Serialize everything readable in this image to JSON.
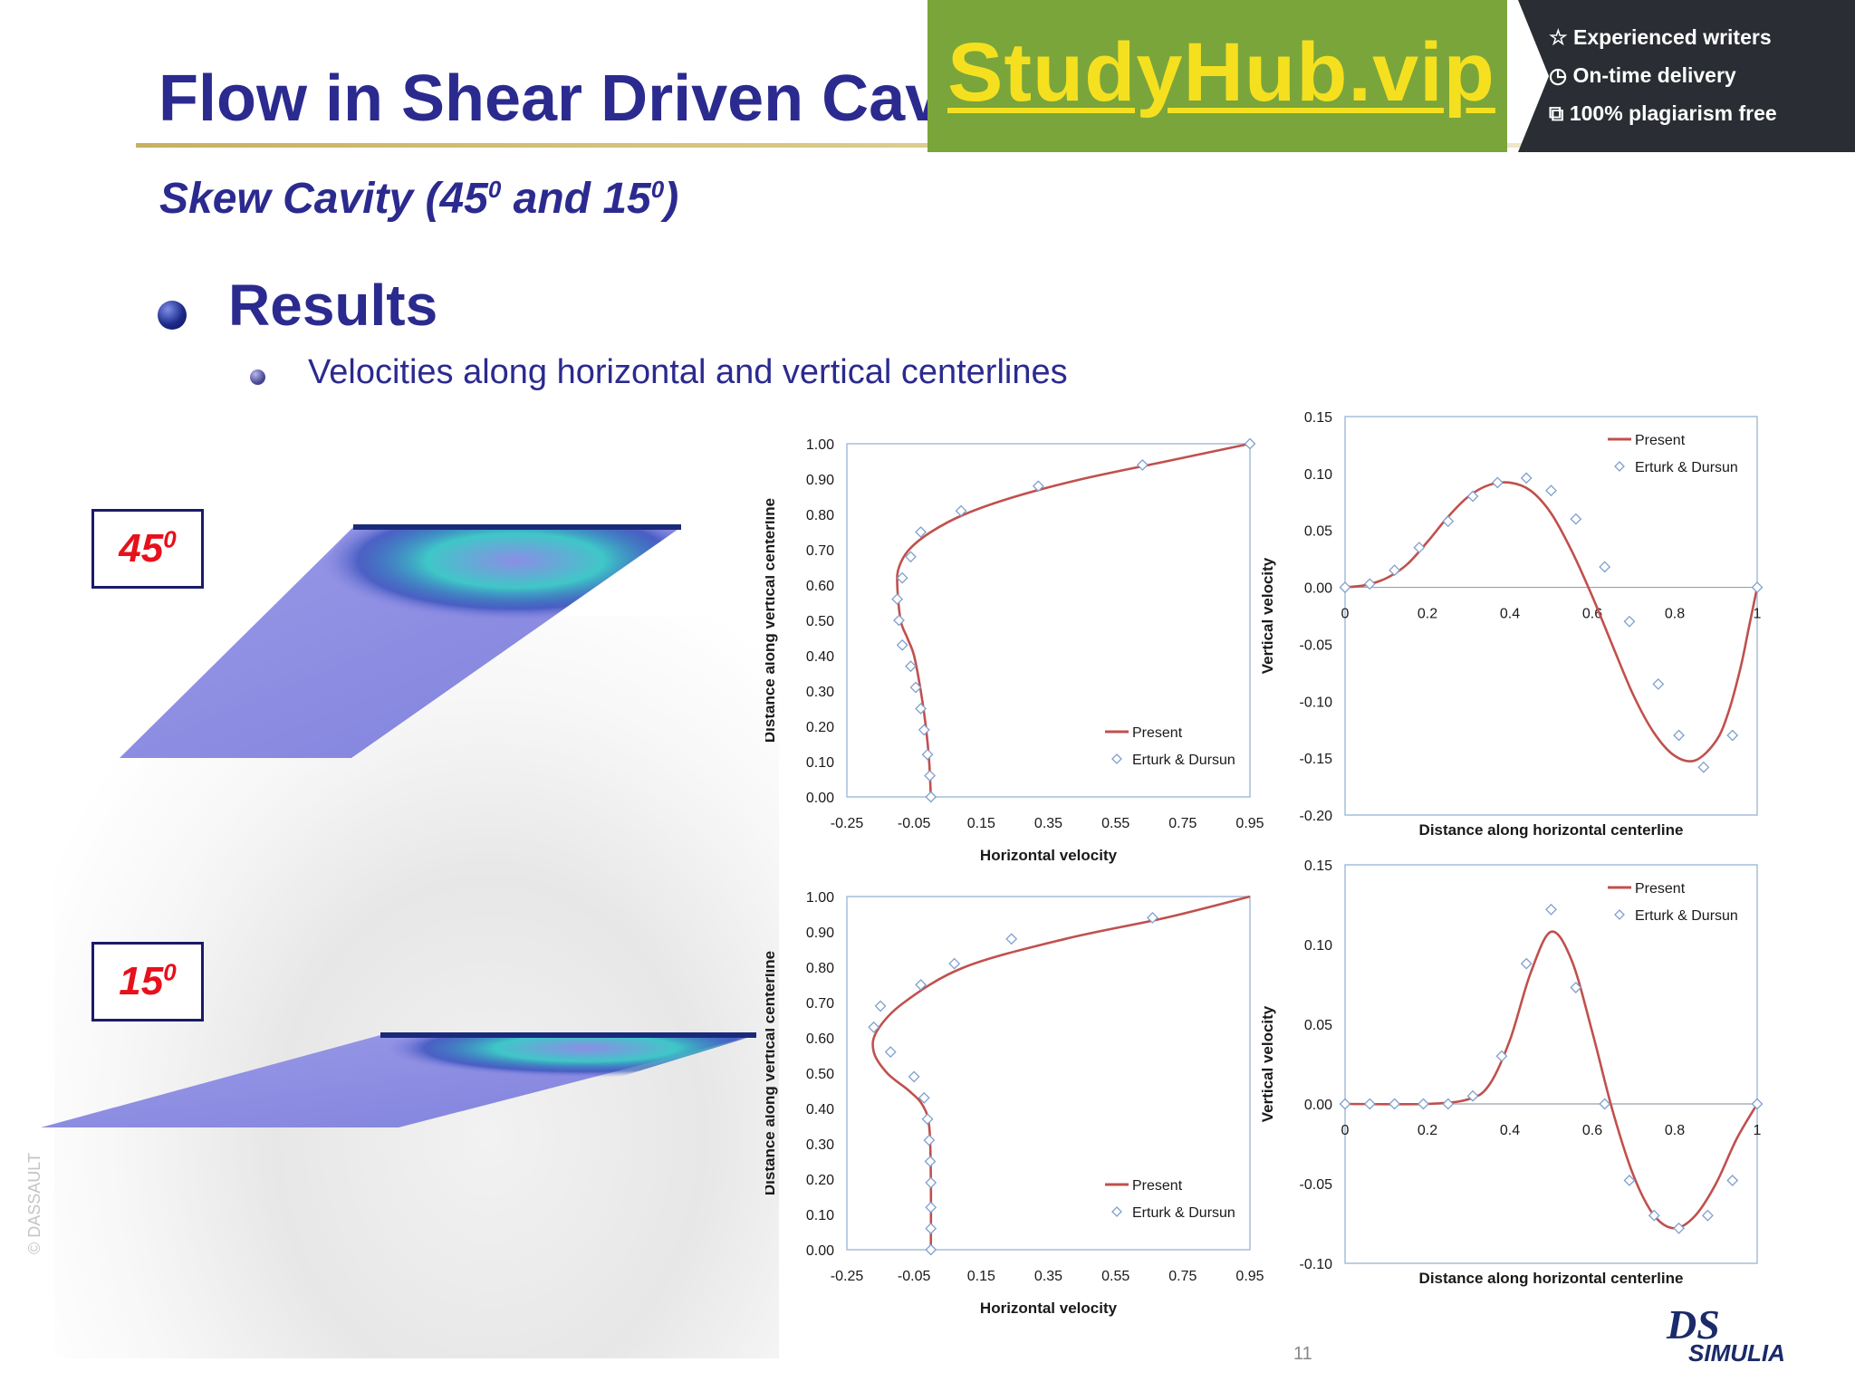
{
  "slide": {
    "title": "Flow in Shear Driven Cav",
    "subtitle_main": "Skew Cavity (45",
    "subtitle_sup1": "0",
    "subtitle_mid": " and 15",
    "subtitle_sup2": "0",
    "subtitle_end": ")",
    "heading": "Results",
    "sub_bullet": "Velocities along horizontal and vertical centerlines",
    "page_number": "11",
    "side_watermark": "© DASSAULT"
  },
  "banner": {
    "name": "StudyHub.vip",
    "features": [
      "Experienced writers",
      "On-time delivery",
      "100% plagiarism free"
    ],
    "feature_icons": [
      "star-icon",
      "clock-icon",
      "copy-icon"
    ],
    "green": "#7aa53a",
    "dark": "#2a2d33",
    "name_color": "#f5e020"
  },
  "cases": [
    {
      "angle": "45",
      "sup": "0"
    },
    {
      "angle": "15",
      "sup": "0"
    }
  ],
  "logo": {
    "mark": "DS",
    "text": "SIMULIA"
  },
  "colors": {
    "title": "#2b2a8f",
    "present_line": "#c0504d",
    "reference_marker": "#7f9fd0",
    "angle_label": "#e8101a"
  },
  "chart_data": [
    {
      "type": "line",
      "id": "u-45",
      "xlabel": "Horizontal velocity",
      "ylabel": "Distance along vertical centerline",
      "xlim": [
        -0.25,
        0.95
      ],
      "ylim": [
        0,
        1.0
      ],
      "xticks": [
        "-0.25",
        "-0.05",
        "0.15",
        "0.35",
        "0.55",
        "0.75",
        "0.95"
      ],
      "yticks": [
        "0.00",
        "0.10",
        "0.20",
        "0.30",
        "0.40",
        "0.50",
        "0.60",
        "0.70",
        "0.80",
        "0.90",
        "1.00"
      ],
      "legend_placement": "bottom-right",
      "series": [
        {
          "name": "Present",
          "kind": "line",
          "x": [
            0.0,
            -0.005,
            -0.015,
            -0.03,
            -0.05,
            -0.07,
            -0.09,
            -0.1,
            -0.095,
            -0.065,
            0.0,
            0.1,
            0.25,
            0.45,
            0.7,
            0.95
          ],
          "y": [
            0.0,
            0.1,
            0.2,
            0.3,
            0.4,
            0.45,
            0.5,
            0.6,
            0.65,
            0.7,
            0.75,
            0.8,
            0.85,
            0.9,
            0.95,
            1.0
          ]
        },
        {
          "name": "Erturk & Dursun",
          "kind": "marker",
          "x": [
            0.0,
            -0.003,
            -0.01,
            -0.02,
            -0.03,
            -0.045,
            -0.06,
            -0.085,
            -0.095,
            -0.1,
            -0.085,
            -0.06,
            -0.03,
            0.09,
            0.32,
            0.63,
            0.95
          ],
          "y": [
            0.0,
            0.06,
            0.12,
            0.19,
            0.25,
            0.31,
            0.37,
            0.43,
            0.5,
            0.56,
            0.62,
            0.68,
            0.75,
            0.81,
            0.88,
            0.94,
            1.0
          ]
        }
      ]
    },
    {
      "type": "line",
      "id": "v-45",
      "xlabel": "Distance along horizontal centerline",
      "ylabel": "Vertical velocity",
      "xlim": [
        0,
        1
      ],
      "ylim": [
        -0.2,
        0.15
      ],
      "xticks": [
        "0",
        "0.2",
        "0.4",
        "0.6",
        "0.8",
        "1"
      ],
      "yticks": [
        "0.15",
        "0.10",
        "0.05",
        "0.00",
        "-0.05",
        "-0.10",
        "-0.15",
        "-0.20"
      ],
      "legend_placement": "top-right",
      "series": [
        {
          "name": "Present",
          "kind": "line",
          "x": [
            0,
            0.05,
            0.1,
            0.15,
            0.2,
            0.25,
            0.3,
            0.35,
            0.4,
            0.45,
            0.5,
            0.55,
            0.6,
            0.65,
            0.7,
            0.75,
            0.8,
            0.85,
            0.9,
            0.93,
            0.96,
            0.98,
            1.0
          ],
          "y": [
            0,
            0.002,
            0.008,
            0.02,
            0.04,
            0.062,
            0.08,
            0.09,
            0.092,
            0.085,
            0.065,
            0.032,
            -0.008,
            -0.052,
            -0.095,
            -0.128,
            -0.148,
            -0.152,
            -0.135,
            -0.11,
            -0.07,
            -0.035,
            0
          ]
        },
        {
          "name": "Erturk & Dursun",
          "kind": "marker",
          "x": [
            0,
            0.06,
            0.12,
            0.18,
            0.25,
            0.31,
            0.37,
            0.44,
            0.5,
            0.56,
            0.63,
            0.69,
            0.76,
            0.81,
            0.87,
            0.94,
            1.0
          ],
          "y": [
            0,
            0.003,
            0.015,
            0.035,
            0.058,
            0.08,
            0.092,
            0.096,
            0.085,
            0.06,
            0.018,
            -0.03,
            -0.085,
            -0.13,
            -0.158,
            -0.13,
            0
          ]
        }
      ]
    },
    {
      "type": "line",
      "id": "u-15",
      "xlabel": "Horizontal velocity",
      "ylabel": "Distance along vertical centerline",
      "xlim": [
        -0.25,
        0.95
      ],
      "ylim": [
        0,
        1.0
      ],
      "xticks": [
        "-0.25",
        "-0.05",
        "0.15",
        "0.35",
        "0.55",
        "0.75",
        "0.95"
      ],
      "yticks": [
        "0.00",
        "0.10",
        "0.20",
        "0.30",
        "0.40",
        "0.50",
        "0.60",
        "0.70",
        "0.80",
        "0.90",
        "1.00"
      ],
      "legend_placement": "bottom-right",
      "series": [
        {
          "name": "Present",
          "kind": "line",
          "x": [
            0.0,
            0.0,
            -0.005,
            -0.025,
            -0.065,
            -0.13,
            -0.17,
            -0.16,
            -0.08,
            0.1,
            0.4,
            0.7,
            0.95
          ],
          "y": [
            0.0,
            0.2,
            0.35,
            0.41,
            0.45,
            0.5,
            0.56,
            0.62,
            0.7,
            0.8,
            0.88,
            0.94,
            1.0
          ]
        },
        {
          "name": "Erturk & Dursun",
          "kind": "marker",
          "x": [
            0.0,
            0.0,
            0.0,
            0.0,
            -0.002,
            -0.005,
            -0.01,
            -0.02,
            -0.05,
            -0.12,
            -0.17,
            -0.15,
            -0.03,
            0.07,
            0.24,
            0.66
          ],
          "y": [
            0.0,
            0.06,
            0.12,
            0.19,
            0.25,
            0.31,
            0.37,
            0.43,
            0.49,
            0.56,
            0.63,
            0.69,
            0.75,
            0.81,
            0.88,
            0.94
          ]
        }
      ]
    },
    {
      "type": "line",
      "id": "v-15",
      "xlabel": "Distance along horizontal centerline",
      "ylabel": "Vertical velocity",
      "xlim": [
        0,
        1
      ],
      "ylim": [
        -0.1,
        0.15
      ],
      "xticks": [
        "0",
        "0.2",
        "0.4",
        "0.6",
        "0.8",
        "1"
      ],
      "yticks": [
        "0.15",
        "0.10",
        "0.05",
        "0.00",
        "-0.05",
        "-0.10"
      ],
      "legend_placement": "top-right",
      "series": [
        {
          "name": "Present",
          "kind": "line",
          "x": [
            0,
            0.2,
            0.3,
            0.35,
            0.4,
            0.45,
            0.5,
            0.55,
            0.6,
            0.65,
            0.7,
            0.75,
            0.8,
            0.85,
            0.9,
            0.95,
            1.0
          ],
          "y": [
            0,
            0,
            0.003,
            0.012,
            0.04,
            0.082,
            0.108,
            0.09,
            0.045,
            -0.005,
            -0.045,
            -0.07,
            -0.078,
            -0.07,
            -0.05,
            -0.022,
            0
          ]
        },
        {
          "name": "Erturk & Dursun",
          "kind": "marker",
          "x": [
            0,
            0.06,
            0.12,
            0.19,
            0.25,
            0.31,
            0.38,
            0.44,
            0.5,
            0.56,
            0.63,
            0.69,
            0.75,
            0.81,
            0.88,
            0.94,
            1.0
          ],
          "y": [
            0,
            0,
            0,
            0,
            0,
            0.005,
            0.03,
            0.088,
            0.122,
            0.073,
            0,
            -0.048,
            -0.07,
            -0.078,
            -0.07,
            -0.048,
            0
          ]
        }
      ]
    }
  ]
}
